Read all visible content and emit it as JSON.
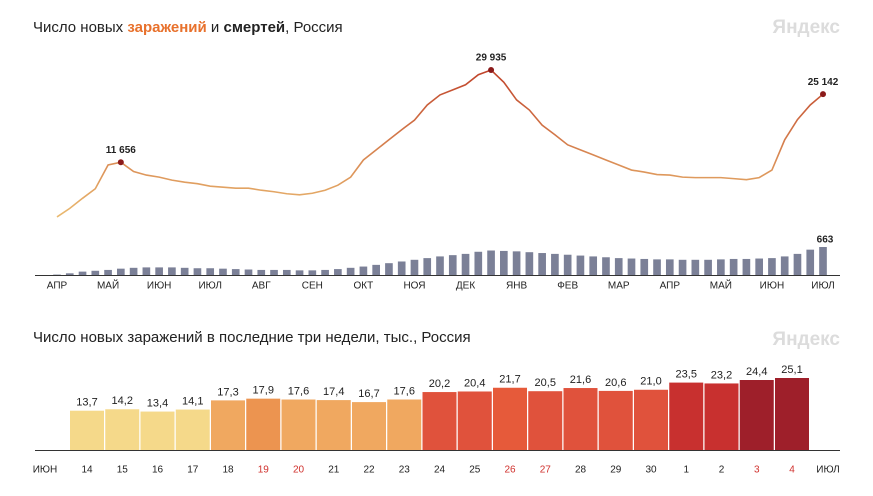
{
  "brand": "Яндекс",
  "chart_data": [
    {
      "type": "line",
      "title_parts": [
        "Число новых",
        "заражений",
        "и",
        "смертей",
        ", Россия"
      ],
      "categories": [
        "АПР",
        null,
        null,
        null,
        "МАЙ",
        null,
        null,
        null,
        "ИЮН",
        null,
        null,
        null,
        "ИЮЛ",
        null,
        null,
        null,
        "АВГ",
        null,
        null,
        null,
        "СЕН",
        null,
        null,
        null,
        "ОКТ",
        null,
        null,
        null,
        "НОЯ",
        null,
        null,
        null,
        "ДЕК",
        null,
        null,
        null,
        "ЯНВ",
        null,
        null,
        null,
        "ФЕВ",
        null,
        null,
        null,
        "МАР",
        null,
        null,
        null,
        "АПР",
        null,
        null,
        null,
        "МАЙ",
        null,
        null,
        null,
        "ИЮН",
        null,
        null,
        null,
        "ИЮЛ"
      ],
      "series": [
        {
          "name": "заражений",
          "color": "#c0432a",
          "color_low": "#ebbd72",
          "values": [
            800,
            2500,
            4500,
            6400,
            11100,
            11656,
            9800,
            9100,
            8700,
            8100,
            7700,
            7400,
            6900,
            6700,
            6500,
            6500,
            6100,
            5800,
            5400,
            5200,
            5500,
            6100,
            7100,
            8700,
            12100,
            14100,
            16100,
            18100,
            20000,
            23000,
            25000,
            26000,
            27000,
            29000,
            29935,
            27500,
            24000,
            22000,
            19000,
            17100,
            15100,
            14100,
            13100,
            12100,
            11100,
            10100,
            9700,
            9200,
            9100,
            8700,
            8600,
            8600,
            8600,
            8400,
            8200,
            8600,
            10100,
            16100,
            20100,
            23000,
            25142
          ],
          "value_labels": [
            null,
            null,
            null,
            null,
            null,
            "11 656",
            null,
            null,
            null,
            null,
            null,
            null,
            null,
            null,
            null,
            null,
            null,
            null,
            null,
            null,
            null,
            null,
            null,
            null,
            null,
            null,
            null,
            null,
            null,
            null,
            null,
            null,
            null,
            null,
            "29 935",
            null,
            null,
            null,
            null,
            null,
            null,
            null,
            null,
            null,
            null,
            null,
            null,
            null,
            null,
            null,
            null,
            null,
            null,
            null,
            null,
            null,
            null,
            null,
            null,
            null,
            "25 142"
          ]
        },
        {
          "name": "смертей",
          "color": "#7b8097",
          "values": [
            10,
            40,
            80,
            100,
            120,
            150,
            170,
            180,
            180,
            180,
            170,
            160,
            160,
            150,
            140,
            130,
            120,
            120,
            120,
            110,
            110,
            120,
            140,
            170,
            200,
            240,
            280,
            320,
            360,
            400,
            440,
            470,
            500,
            550,
            580,
            570,
            560,
            540,
            520,
            500,
            480,
            460,
            440,
            420,
            400,
            390,
            380,
            370,
            370,
            360,
            360,
            360,
            370,
            380,
            380,
            390,
            400,
            440,
            500,
            600,
            663
          ],
          "value_labels": [
            null,
            null,
            null,
            null,
            null,
            null,
            null,
            null,
            null,
            null,
            null,
            null,
            null,
            null,
            null,
            null,
            null,
            null,
            null,
            null,
            null,
            null,
            null,
            null,
            null,
            null,
            null,
            null,
            null,
            null,
            null,
            null,
            null,
            null,
            null,
            null,
            null,
            null,
            null,
            null,
            null,
            null,
            null,
            null,
            null,
            null,
            null,
            null,
            null,
            null,
            null,
            null,
            null,
            null,
            null,
            null,
            null,
            null,
            null,
            null,
            "663"
          ]
        }
      ]
    },
    {
      "type": "bar",
      "title": "Число новых заражений в последние три недели, тыс., Россия",
      "start_label": "ИЮН",
      "end_label": "ИЮЛ",
      "categories": [
        "14",
        "15",
        "16",
        "17",
        "18",
        "19",
        "20",
        "21",
        "22",
        "23",
        "24",
        "25",
        "26",
        "27",
        "28",
        "29",
        "30",
        "1",
        "2",
        "3",
        "4"
      ],
      "values": [
        13.7,
        14.2,
        13.4,
        14.1,
        17.3,
        17.9,
        17.6,
        17.4,
        16.7,
        17.6,
        20.2,
        20.4,
        21.7,
        20.5,
        21.6,
        20.6,
        21.0,
        23.5,
        23.2,
        24.4,
        25.1
      ],
      "value_labels": [
        "13,7",
        "14,2",
        "13,4",
        "14,1",
        "17,3",
        "17,9",
        "17,6",
        "17,4",
        "16,7",
        "17,6",
        "20,2",
        "20,4",
        "21,7",
        "20,5",
        "21,6",
        "20,6",
        "21,0",
        "23,5",
        "23,2",
        "24,4",
        "25,1"
      ],
      "colors": [
        "#f5d98a",
        "#f5d98a",
        "#f5d98a",
        "#f5d98a",
        "#f0a860",
        "#ec9450",
        "#f0a860",
        "#f0a860",
        "#f0a860",
        "#f0a860",
        "#e0523c",
        "#e0523c",
        "#e65a3a",
        "#e0523c",
        "#e0523c",
        "#e0523c",
        "#e0523c",
        "#c8302f",
        "#c8302f",
        "#9e1f2a",
        "#9e1f2a"
      ],
      "category_colors": [
        "#222",
        "#222",
        "#222",
        "#222",
        "#222",
        "#d0312d",
        "#d0312d",
        "#222",
        "#222",
        "#222",
        "#222",
        "#222",
        "#d0312d",
        "#d0312d",
        "#222",
        "#222",
        "#222",
        "#222",
        "#222",
        "#d0312d",
        "#d0312d"
      ]
    }
  ]
}
